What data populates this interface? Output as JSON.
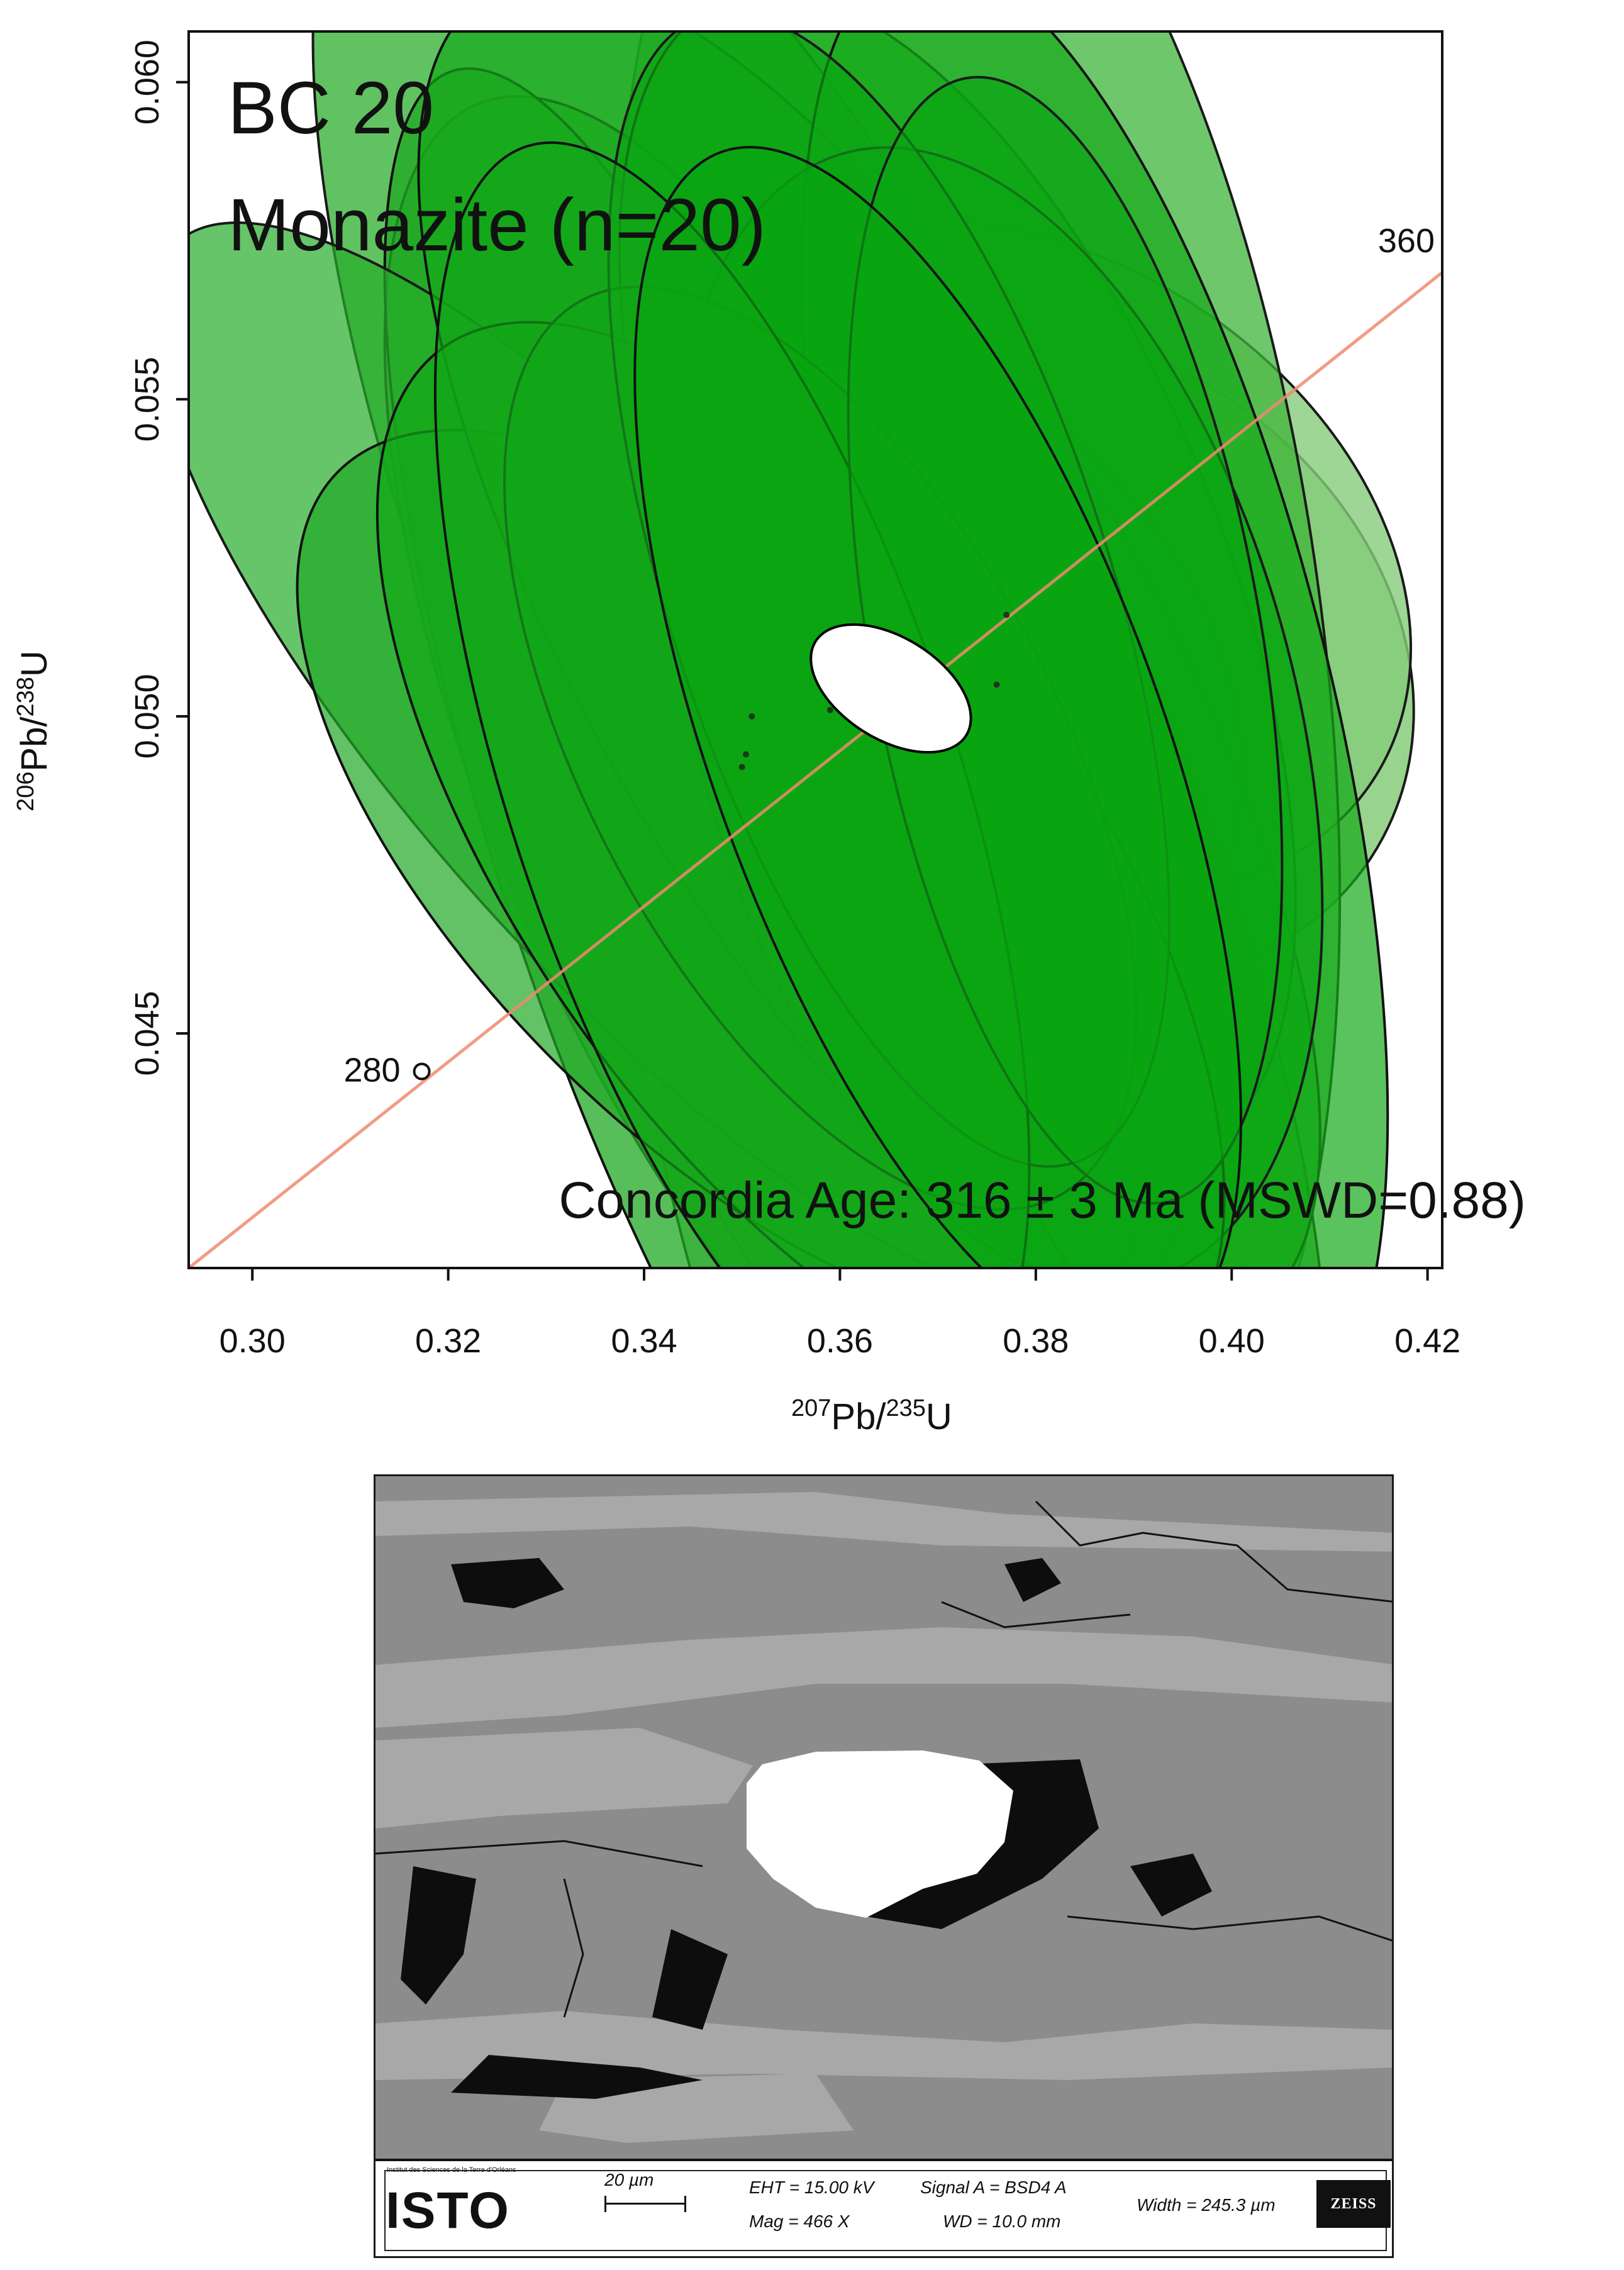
{
  "chart_data": {
    "type": "scatter",
    "subtype": "U-Pb concordia diagram with error ellipses",
    "title": "BC 20",
    "subtitle": "Monazite (n=20)",
    "xlabel_parts": {
      "sup1": "207",
      "base1": "Pb/",
      "sup2": "235",
      "base2": "U"
    },
    "ylabel_parts": {
      "sup1": "206",
      "base1": "Pb/",
      "sup2": "238",
      "base2": "U"
    },
    "xlim": [
      0.2935,
      0.4215
    ],
    "ylim": [
      0.0413,
      0.0608
    ],
    "x_ticks": [
      0.3,
      0.32,
      0.34,
      0.36,
      0.38,
      0.4,
      0.42
    ],
    "x_tick_labels": [
      "0.30",
      "0.32",
      "0.34",
      "0.36",
      "0.38",
      "0.40",
      "0.42"
    ],
    "y_ticks": [
      0.045,
      0.05,
      0.055,
      0.06
    ],
    "y_tick_labels": [
      "0.045",
      "0.050",
      "0.055",
      "0.060"
    ],
    "grid": false,
    "concordia_curve": {
      "color": "#f08a6e",
      "points": [
        [
          0.2935,
          0.0413
        ],
        [
          0.4215,
          0.057
        ]
      ],
      "age_markers": [
        {
          "label": "280",
          "x": 0.3173,
          "y": 0.0444
        },
        {
          "label": "360",
          "x": 0.4215,
          "y": 0.057
        }
      ]
    },
    "error_ellipses": [
      {
        "cx": 0.38,
        "cy": 0.051,
        "rx": 0.0325,
        "ry": 0.0062,
        "angle": 62,
        "fill": "#86cc7a",
        "fill_opacity": 0.85,
        "stroke": "#1a1a1a"
      },
      {
        "cx": 0.379,
        "cy": 0.0525,
        "rx": 0.031,
        "ry": 0.0065,
        "angle": 58,
        "fill": "#86cc7a",
        "fill_opacity": 0.8,
        "stroke": "#1a1a1a"
      },
      {
        "cx": 0.361,
        "cy": 0.0508,
        "rx": 0.0325,
        "ry": 0.0068,
        "angle": 52,
        "fill": "#5fbe56",
        "fill_opacity": 0.8,
        "stroke": "#1a1a1a"
      },
      {
        "cx": 0.369,
        "cy": 0.0445,
        "rx": 0.0285,
        "ry": 0.0135,
        "angle": 12,
        "fill": "#8bd07f",
        "fill_opacity": 0.9,
        "stroke": "#111111"
      },
      {
        "cx": 0.374,
        "cy": 0.0515,
        "rx": 0.035,
        "ry": 0.0145,
        "angle": 8,
        "fill": "#3fb43a",
        "fill_opacity": 0.75,
        "stroke": "#1a1a1a"
      },
      {
        "cx": 0.358,
        "cy": 0.05,
        "rx": 0.033,
        "ry": 0.016,
        "angle": 24,
        "fill": "#2cae2c",
        "fill_opacity": 0.75,
        "stroke": "#1a1a1a"
      },
      {
        "cx": 0.351,
        "cy": 0.049,
        "rx": 0.027,
        "ry": 0.0115,
        "angle": 22,
        "fill": "#28ab28",
        "fill_opacity": 0.75,
        "stroke": "#1a1a1a"
      },
      {
        "cx": 0.346,
        "cy": 0.048,
        "rx": 0.021,
        "ry": 0.0128,
        "angle": 18,
        "fill": "#1fa823",
        "fill_opacity": 0.75,
        "stroke": "#111111"
      },
      {
        "cx": 0.34,
        "cy": 0.0493,
        "rx": 0.022,
        "ry": 0.011,
        "angle": 42,
        "fill": "#27ad2a",
        "fill_opacity": 0.7,
        "stroke": "#1a1a1a"
      },
      {
        "cx": 0.35,
        "cy": 0.0475,
        "rx": 0.027,
        "ry": 0.009,
        "angle": 45,
        "fill": "#20a823",
        "fill_opacity": 0.7,
        "stroke": "#111111"
      },
      {
        "cx": 0.363,
        "cy": 0.051,
        "rx": 0.0285,
        "ry": 0.012,
        "angle": 30,
        "fill": "#16a81a",
        "fill_opacity": 0.7,
        "stroke": "#111111"
      },
      {
        "cx": 0.372,
        "cy": 0.0522,
        "rx": 0.027,
        "ry": 0.0098,
        "angle": 22,
        "fill": "#0fa816",
        "fill_opacity": 0.7,
        "stroke": "#1a1a1a"
      },
      {
        "cx": 0.386,
        "cy": 0.0503,
        "rx": 0.024,
        "ry": 0.012,
        "angle": 14,
        "fill": "#14aa18",
        "fill_opacity": 0.7,
        "stroke": "#111111"
      },
      {
        "cx": 0.376,
        "cy": 0.05,
        "rx": 0.0305,
        "ry": 0.0092,
        "angle": 15,
        "fill": "#0ca714",
        "fill_opacity": 0.7,
        "stroke": "#1a1a1a"
      },
      {
        "cx": 0.356,
        "cy": 0.0478,
        "rx": 0.0285,
        "ry": 0.0098,
        "angle": 35,
        "fill": "#12a818",
        "fill_opacity": 0.7,
        "stroke": "#111111"
      },
      {
        "cx": 0.358,
        "cy": 0.0495,
        "rx": 0.024,
        "ry": 0.008,
        "angle": 28,
        "fill": "#0ea716",
        "fill_opacity": 0.7,
        "stroke": "#1a1a1a"
      },
      {
        "cx": 0.365,
        "cy": 0.052,
        "rx": 0.0225,
        "ry": 0.0095,
        "angle": 18,
        "fill": "#0ba513",
        "fill_opacity": 0.65,
        "stroke": "#1a1a1a"
      },
      {
        "cx": 0.349,
        "cy": 0.049,
        "rx": 0.023,
        "ry": 0.0105,
        "angle": 18,
        "fill": "#13a618",
        "fill_opacity": 0.65,
        "stroke": "#111111"
      },
      {
        "cx": 0.383,
        "cy": 0.0512,
        "rx": 0.02,
        "ry": 0.009,
        "angle": 10,
        "fill": "#0aa512",
        "fill_opacity": 0.65,
        "stroke": "#1a1a1a"
      },
      {
        "cx": 0.37,
        "cy": 0.0495,
        "rx": 0.023,
        "ry": 0.01,
        "angle": 20,
        "fill": "#09a411",
        "fill_opacity": 0.65,
        "stroke": "#111111"
      }
    ],
    "concordia_age_ellipse": {
      "cx": 0.3652,
      "cy": 0.05044,
      "rx": 0.0052,
      "ry": 0.0014,
      "angle": 58,
      "fill": "#ffffff",
      "stroke": "#000000"
    },
    "data_points": [
      {
        "x": 0.35,
        "y": 0.0492
      },
      {
        "x": 0.3504,
        "y": 0.0494
      },
      {
        "x": 0.351,
        "y": 0.05
      },
      {
        "x": 0.359,
        "y": 0.0501
      },
      {
        "x": 0.376,
        "y": 0.0505
      },
      {
        "x": 0.377,
        "y": 0.0516
      }
    ],
    "annotation": "Concordia Age: 316 ± 3 Ma (MSWD=0.88)"
  },
  "sem_panel": {
    "colors": {
      "matrix": "#8c8c8c",
      "grain": "#ffffff",
      "void": "#0d0d0d",
      "mica": "#a8a8a8"
    },
    "logo_text": "ISTO",
    "logo_tagline": "Institut des Sciences de la Terre d'Orléans",
    "scale_bar_label": "20 µm",
    "eht": "EHT = 15.00 kV",
    "mag": "Mag =    466 X",
    "signal": "Signal A = BSD4 A",
    "wd": "WD = 10.0 mm",
    "width": "Width = 245.3 µm",
    "brand": "ZEISS"
  }
}
